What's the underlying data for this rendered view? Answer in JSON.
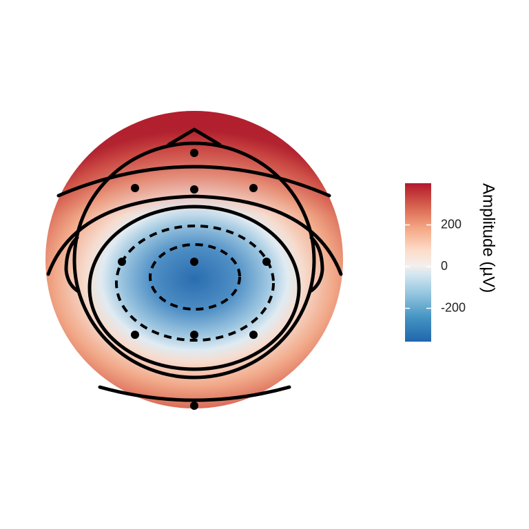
{
  "chart_data": {
    "type": "heatmap",
    "subtype": "eeg-topographic-map",
    "title": "",
    "colorbar": {
      "title": "Amplitude (µV)",
      "range": [
        -360,
        400
      ],
      "ticks": [
        {
          "value": 200,
          "label": "200"
        },
        {
          "value": 0,
          "label": "0"
        },
        {
          "value": -200,
          "label": "-200"
        }
      ],
      "colors": [
        "#2166ac",
        "#4393c3",
        "#92c5de",
        "#d1e5f0",
        "#f7f7f7",
        "#fddbc7",
        "#f4a582",
        "#d6604d",
        "#b2182b"
      ]
    },
    "field": {
      "minimum_value": -340,
      "minimum_at": "center",
      "edge_value_top": 380,
      "edge_value_bottom": 150,
      "contours": [
        {
          "level": -200,
          "style": "dashed"
        },
        {
          "level": -100,
          "style": "dashed"
        }
      ]
    },
    "electrodes_count": 11,
    "legend_position": "right"
  }
}
